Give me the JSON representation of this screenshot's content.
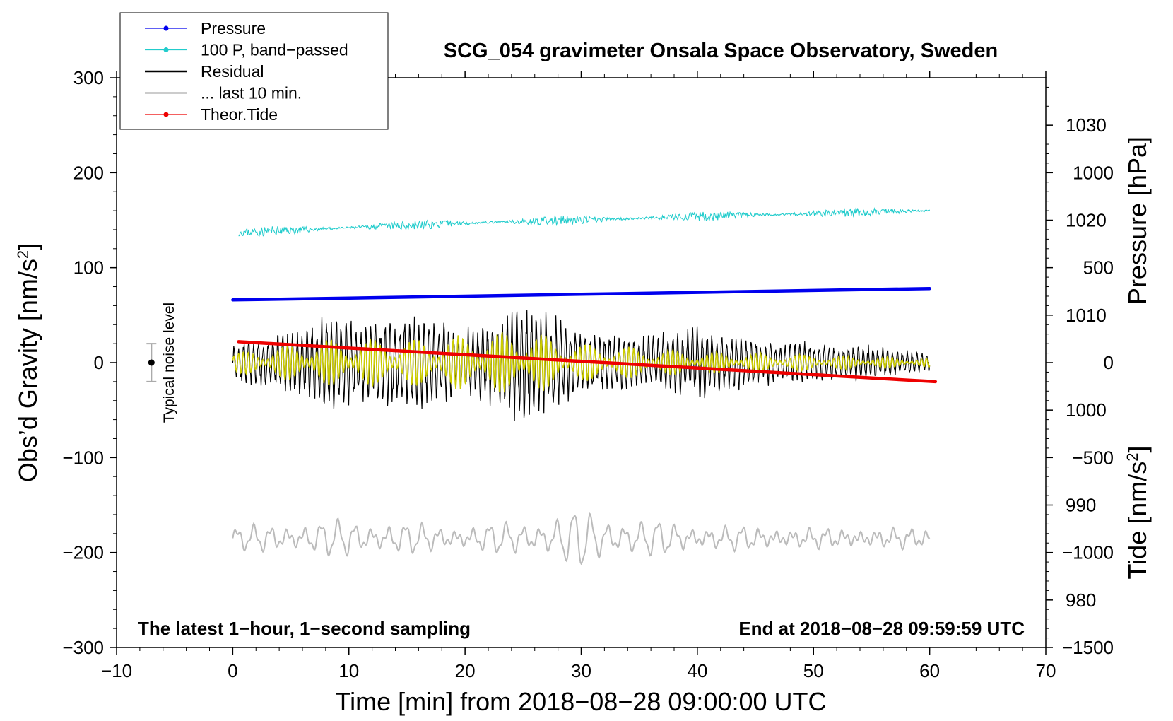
{
  "chart_data": {
    "type": "line",
    "title": "SCG_054 gravimeter Onsala Space Observatory, Sweden",
    "xlabel": "Time [min] from 2018−08−28 09:00:00 UTC",
    "ylabel_main": "Obs’d Gravity [nm/s",
    "ylabel_main_sup": "2",
    "ylabel_main_close": "]",
    "ylabel_pressure": "Pressure [hPa]",
    "ylabel_tide": "Tide [nm/s",
    "ylabel_tide_sup": "2",
    "ylabel_tide_close": "]",
    "xlim": [
      -10,
      70
    ],
    "ylim": [
      -300,
      300
    ],
    "x_ticks": [
      -10,
      0,
      10,
      20,
      30,
      40,
      50,
      60,
      70
    ],
    "x_tick_labels": [
      "−10",
      "0",
      "10",
      "20",
      "30",
      "40",
      "50",
      "60",
      "70"
    ],
    "y_ticks": [
      300,
      200,
      100,
      0,
      -100,
      -200,
      -300
    ],
    "y_tick_labels": [
      "300",
      "200",
      "100",
      "0",
      "−100",
      "−200",
      "−300"
    ],
    "pressure_axis": {
      "range": [
        975,
        1035
      ],
      "ticks": [
        1030,
        1020,
        1010,
        1000,
        990,
        980
      ],
      "tick_labels": [
        "1030",
        "1020",
        "1010",
        "1000",
        "990",
        "980"
      ]
    },
    "tide_axis": {
      "range": [
        -1500,
        1500
      ],
      "ticks": [
        1000,
        500,
        0,
        -500,
        -1000,
        -1500
      ],
      "tick_labels": [
        "1000",
        "500",
        "0",
        "−500",
        "−1000",
        "−1500"
      ]
    },
    "legend": {
      "position": "top-left",
      "entries": [
        {
          "label": "Pressure",
          "color": "#0000ee",
          "marker": true
        },
        {
          "label": "100 P, band−passed",
          "color": "#22cccc",
          "marker": true
        },
        {
          "label": "Residual",
          "color": "#000000",
          "marker": false
        },
        {
          "label": "... last 10 min.",
          "color": "#bbbbbb",
          "marker": false
        },
        {
          "label": "Theor.Tide",
          "color": "#ee0000",
          "marker": true
        }
      ]
    },
    "series": [
      {
        "name": "Pressure",
        "axis": "pressure",
        "color": "#0000ee",
        "x": [
          0,
          10,
          20,
          30,
          40,
          50,
          60
        ],
        "values": [
          1011.6,
          1011.8,
          1012.0,
          1012.2,
          1012.4,
          1012.6,
          1012.8
        ]
      },
      {
        "name": "100 P, band-passed",
        "axis": "main",
        "color": "#22cccc",
        "x": [
          0.5,
          10,
          20,
          30,
          40,
          50,
          60
        ],
        "values": [
          137,
          142,
          147,
          150,
          154,
          157,
          160
        ],
        "noise_amplitude": 5
      },
      {
        "name": "Residual",
        "axis": "main",
        "color": "#000000",
        "x": [
          0,
          60
        ],
        "values": [
          0,
          0
        ],
        "envelope_x": [
          0,
          5,
          8,
          12,
          16,
          20,
          25,
          28,
          30,
          35,
          40,
          45,
          50,
          55,
          60
        ],
        "envelope_amplitude": [
          20,
          35,
          50,
          45,
          55,
          35,
          65,
          55,
          35,
          28,
          40,
          25,
          22,
          18,
          10
        ]
      },
      {
        "name": "... last 10 min.",
        "axis": "main",
        "color": "#bbbbbb",
        "x": [
          0,
          60
        ],
        "values": [
          -185,
          -185
        ],
        "envelope_x": [
          0,
          10,
          20,
          27,
          30,
          35,
          40,
          50,
          60
        ],
        "envelope_amplitude": [
          10,
          18,
          10,
          20,
          28,
          18,
          12,
          8,
          8
        ]
      },
      {
        "name": "Theor.Tide",
        "axis": "tide",
        "color": "#ee0000",
        "x": [
          0.5,
          60.5
        ],
        "values": [
          110,
          -100
        ]
      }
    ],
    "filtered_residual": {
      "color": "#cccc00",
      "envelope_x": [
        0,
        8,
        16,
        25,
        30,
        40,
        50,
        60
      ],
      "envelope_amplitude": [
        10,
        25,
        25,
        35,
        20,
        12,
        8,
        5
      ]
    },
    "noise_marker": {
      "x": -7,
      "value": 0,
      "error": 20,
      "label": "Typical noise level"
    },
    "annotation_left": "The latest 1−hour, 1−second sampling",
    "annotation_right": "End at 2018−08−28 09:59:59 UTC"
  }
}
